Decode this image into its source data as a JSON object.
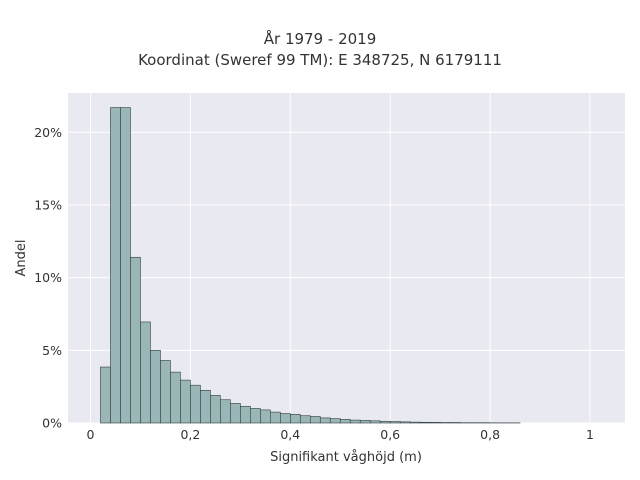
{
  "title": {
    "line1": "År 1979 - 2019",
    "line2": "Koordinat (Sweref 99 TM): E 348725, N 6179111"
  },
  "chart_data": {
    "type": "bar",
    "title": "År 1979 - 2019 / Koordinat (Sweref 99 TM): E 348725, N 6179111",
    "xlabel": "Signifikant våghöjd (m)",
    "ylabel": "Andel",
    "xlim": [
      -0.045,
      1.07
    ],
    "ylim": [
      0,
      22.7
    ],
    "x_ticks": [
      {
        "value": 0,
        "label": "0"
      },
      {
        "value": 0.2,
        "label": "0,2"
      },
      {
        "value": 0.4,
        "label": "0,4"
      },
      {
        "value": 0.6,
        "label": "0,6"
      },
      {
        "value": 0.8,
        "label": "0,8"
      },
      {
        "value": 1.0,
        "label": "1"
      }
    ],
    "y_ticks": [
      {
        "value": 0,
        "label": "0%"
      },
      {
        "value": 5,
        "label": "5%"
      },
      {
        "value": 10,
        "label": "10%"
      },
      {
        "value": 15,
        "label": "15%"
      },
      {
        "value": 20,
        "label": "20%"
      }
    ],
    "bin_width": 0.02,
    "bins_start": [
      0.0,
      0.02,
      0.04,
      0.06,
      0.08,
      0.1,
      0.12,
      0.14,
      0.16,
      0.18,
      0.2,
      0.22,
      0.24,
      0.26,
      0.28,
      0.3,
      0.32,
      0.34,
      0.36,
      0.38,
      0.4,
      0.42,
      0.44,
      0.46,
      0.48,
      0.5,
      0.52,
      0.54,
      0.56,
      0.58,
      0.6,
      0.62,
      0.64,
      0.66,
      0.68,
      0.7,
      0.72,
      0.74,
      0.76,
      0.78,
      0.8,
      0.82,
      0.84
    ],
    "values": [
      0.0,
      3.85,
      21.7,
      21.7,
      11.4,
      6.95,
      5.0,
      4.3,
      3.5,
      2.95,
      2.6,
      2.25,
      1.9,
      1.6,
      1.35,
      1.15,
      1.0,
      0.9,
      0.75,
      0.65,
      0.6,
      0.5,
      0.45,
      0.35,
      0.3,
      0.25,
      0.2,
      0.18,
      0.15,
      0.12,
      0.1,
      0.08,
      0.06,
      0.05,
      0.04,
      0.03,
      0.03,
      0.02,
      0.02,
      0.02,
      0.01,
      0.01,
      0.01
    ],
    "grid": true,
    "colors": {
      "plot_bg": "#e9e9f2",
      "grid": "#ffffff",
      "bar_fill": "#9bb6b6",
      "bar_stroke": "#2e3d3d"
    }
  }
}
